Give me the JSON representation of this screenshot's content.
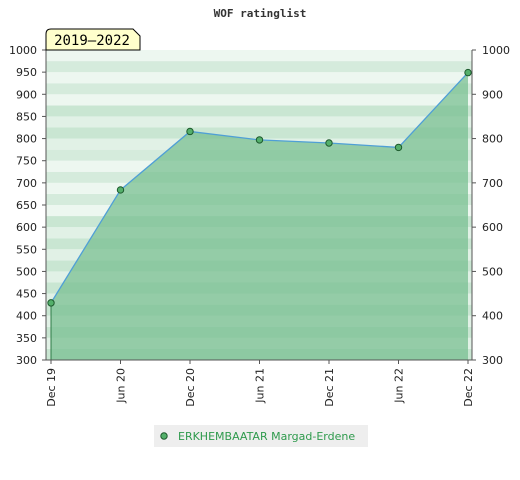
{
  "chart_data": {
    "type": "area",
    "title": "WOF ratinglist",
    "period_badge": "2019–2022",
    "x": [
      "Dec 19",
      "Jun 20",
      "Dec 20",
      "Jun 21",
      "Dec 21",
      "Jun 22",
      "Dec 22"
    ],
    "series": [
      {
        "name": "ERKHEMBAATAR Margad-Erdene",
        "values": [
          429,
          684,
          816,
          797,
          790,
          780,
          949
        ]
      }
    ],
    "ylim": [
      300,
      1000
    ],
    "yticks": [
      300,
      350,
      400,
      450,
      500,
      550,
      600,
      650,
      700,
      750,
      800,
      850,
      900,
      950,
      1000
    ],
    "yticks_right": [
      300,
      400,
      500,
      600,
      700,
      800,
      900,
      1000
    ],
    "xlabel": "",
    "ylabel": "",
    "grid": "horizontal-bands",
    "legend_position": "bottom-center",
    "colors": {
      "line": "#4f9fd6",
      "fill": "#76be8f",
      "marker": "#54b06b",
      "band_dark": "#b4dcc0",
      "band_light": "#f0f8f2",
      "badge_bg": "#ffffcc",
      "legend_text": "#2e9a4c"
    }
  }
}
